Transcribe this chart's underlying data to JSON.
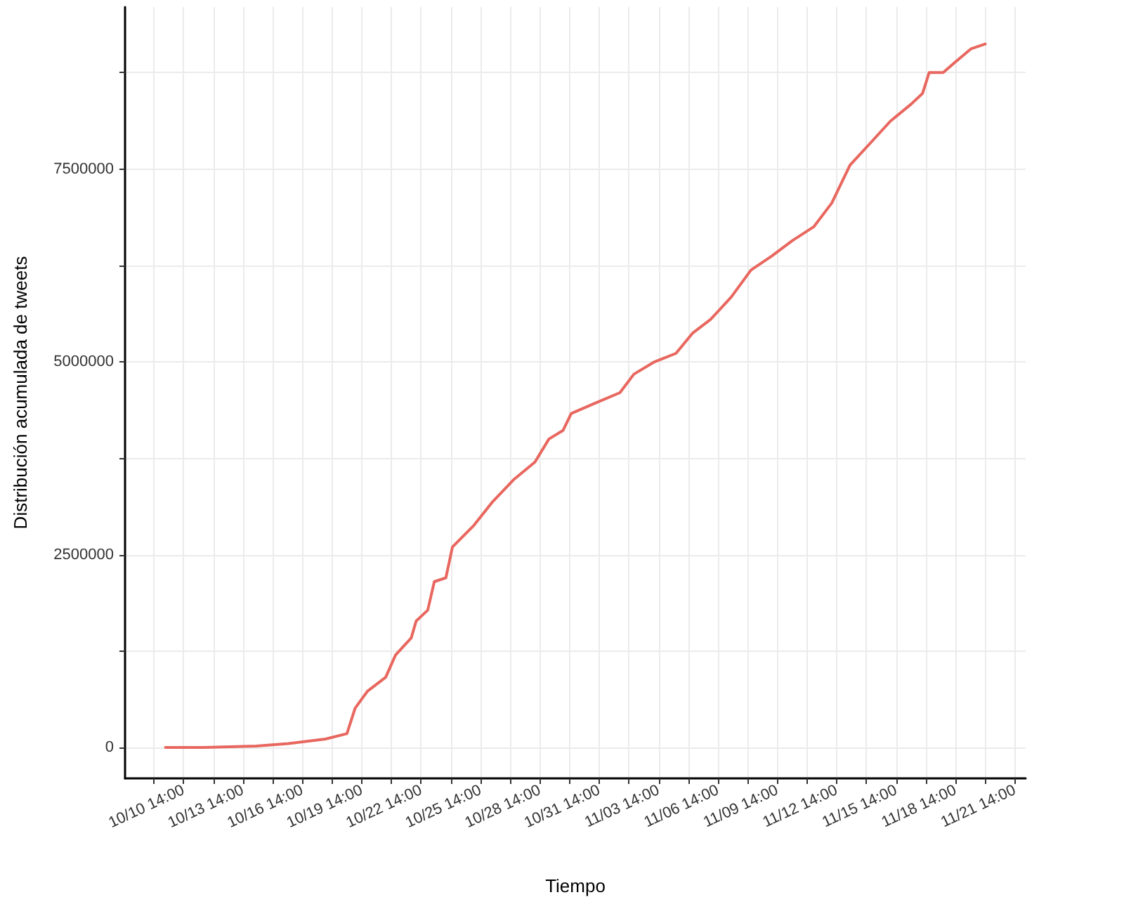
{
  "chart_data": {
    "type": "line",
    "xlabel": "Tiempo",
    "ylabel": "Distribución acumulada de tweets",
    "x": [
      "--10-09T16:00",
      "--10-11T15:00",
      "--10-14T06:00",
      "--10-15T21:00",
      "--10-17T18:00",
      "--10-18T20:00",
      "--10-19T06:00",
      "--10-19T21:00",
      "--10-20T19:00",
      "--10-21T07:00",
      "--10-22T02:00",
      "--10-22T08:00",
      "--10-22T22:00",
      "--10-23T06:00",
      "--10-23T20:00",
      "--10-24T04:00",
      "--10-25T06:00",
      "--10-26T05:00",
      "--10-27T07:00",
      "--10-28T08:00",
      "--10-29T01:00",
      "--10-29T18:00",
      "--10-30T04:00",
      "--10-31T08:00",
      "--11-01T15:00",
      "--11-02T08:00",
      "--11-03T09:00",
      "--11-04T11:00",
      "--11-05T07:00",
      "--11-06T05:00",
      "--11-07T06:00",
      "--11-08T06:00",
      "--11-09T07:00",
      "--11-10T08:00",
      "--11-11T10:00",
      "--11-12T08:00",
      "--11-13T06:00",
      "--11-14T07:00",
      "--11-15T07:00",
      "--11-16T08:00",
      "--11-16T22:00",
      "--11-17T06:00",
      "--11-17T23:00",
      "--11-18T13:00",
      "--11-19T09:00",
      "--11-20T02:00"
    ],
    "series": [
      {
        "color": "#e8675f",
        "values": [
          0,
          0,
          20000,
          50000,
          110000,
          180000,
          510000,
          730000,
          910000,
          1200000,
          1420000,
          1640000,
          1780000,
          2150000,
          2200000,
          2600000,
          2880000,
          3190000,
          3480000,
          3700000,
          4000000,
          4110000,
          4330000,
          4460000,
          4600000,
          4840000,
          5000000,
          5110000,
          5370000,
          5550000,
          5840000,
          6190000,
          6370000,
          6570000,
          6750000,
          7060000,
          7550000,
          7840000,
          8120000,
          8340000,
          8480000,
          8750000,
          8750000,
          8880000,
          9060000,
          9120000
        ]
      }
    ],
    "xlim": [
      "--10-07T15:00",
      "--11-22T03:00"
    ],
    "xticks": [
      {
        "value": "--10-09T02:00",
        "label": null
      },
      {
        "value": "--10-10T14:00",
        "label": "10/10 14:00"
      },
      {
        "value": "--10-12T02:00",
        "label": null
      },
      {
        "value": "--10-13T14:00",
        "label": "10/13 14:00"
      },
      {
        "value": "--10-15T02:00",
        "label": null
      },
      {
        "value": "--10-16T14:00",
        "label": "10/16 14:00"
      },
      {
        "value": "--10-18T02:00",
        "label": null
      },
      {
        "value": "--10-19T14:00",
        "label": "10/19 14:00"
      },
      {
        "value": "--10-21T02:00",
        "label": null
      },
      {
        "value": "--10-22T14:00",
        "label": "10/22 14:00"
      },
      {
        "value": "--10-24T02:00",
        "label": null
      },
      {
        "value": "--10-25T14:00",
        "label": "10/25 14:00"
      },
      {
        "value": "--10-27T02:00",
        "label": null
      },
      {
        "value": "--10-28T14:00",
        "label": "10/28 14:00"
      },
      {
        "value": "--10-30T02:00",
        "label": null
      },
      {
        "value": "--10-31T14:00",
        "label": "10/31 14:00"
      },
      {
        "value": "--11-02T02:00",
        "label": null
      },
      {
        "value": "--11-03T14:00",
        "label": "11/03 14:00"
      },
      {
        "value": "--11-05T02:00",
        "label": null
      },
      {
        "value": "--11-06T14:00",
        "label": "11/06 14:00"
      },
      {
        "value": "--11-08T02:00",
        "label": null
      },
      {
        "value": "--11-09T14:00",
        "label": "11/09 14:00"
      },
      {
        "value": "--11-11T02:00",
        "label": null
      },
      {
        "value": "--11-12T14:00",
        "label": "11/12 14:00"
      },
      {
        "value": "--11-14T02:00",
        "label": null
      },
      {
        "value": "--11-15T14:00",
        "label": "11/15 14:00"
      },
      {
        "value": "--11-17T02:00",
        "label": null
      },
      {
        "value": "--11-18T14:00",
        "label": "11/18 14:00"
      },
      {
        "value": "--11-20T02:00",
        "label": null
      },
      {
        "value": "--11-21T14:00",
        "label": "11/21 14:00"
      }
    ],
    "ylim": [
      -400000,
      9600000
    ],
    "yticks": [
      0,
      {
        "value": 1250000,
        "label": null
      },
      2500000,
      {
        "value": 3750000,
        "label": null
      },
      5000000,
      {
        "value": 6250000,
        "label": null
      },
      7500000,
      {
        "value": 8750000,
        "label": null
      }
    ],
    "grid": true,
    "marker": "none",
    "line_style": "solid"
  }
}
